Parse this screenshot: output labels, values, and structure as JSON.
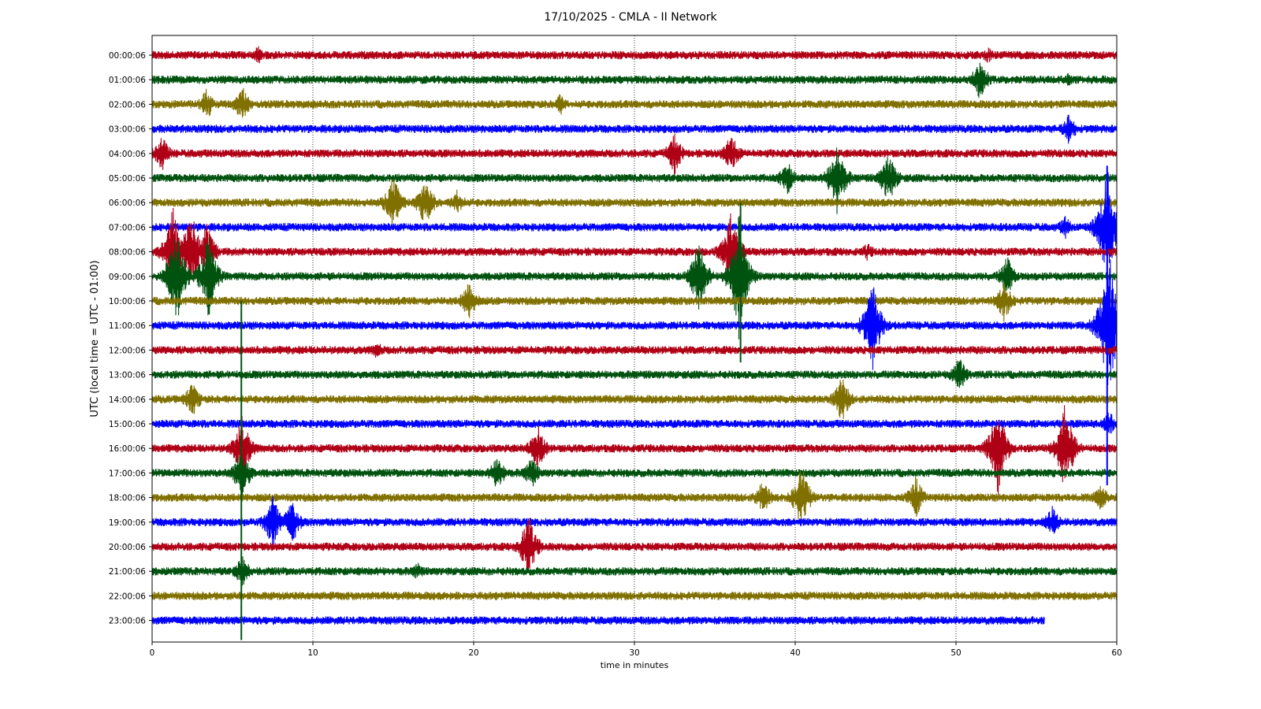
{
  "chart_data": {
    "type": "line",
    "title": "17/10/2025 - CMLA - II Network",
    "xlabel": "time in minutes",
    "ylabel": "UTC (local time = UTC - 01:00)",
    "xlim": [
      0,
      60
    ],
    "x_ticks": [
      "0",
      "10",
      "20",
      "30",
      "40",
      "50",
      "60"
    ],
    "grid": "vertical dotted lines at each x tick",
    "colors": [
      "#b00016",
      "#00520f",
      "#807000",
      "#0000ff"
    ],
    "series": [
      {
        "name": "00:00:06",
        "color": "#b00016",
        "end_minute": 60,
        "events": [
          {
            "t": 6.6,
            "amp": 0.4
          },
          {
            "t": 52.0,
            "amp": 0.35
          }
        ]
      },
      {
        "name": "01:00:06",
        "color": "#00520f",
        "end_minute": 60,
        "events": [
          {
            "t": 51.5,
            "amp": 0.9
          },
          {
            "t": 57.0,
            "amp": 0.3
          }
        ]
      },
      {
        "name": "02:00:06",
        "color": "#807000",
        "end_minute": 60,
        "events": [
          {
            "t": 3.4,
            "amp": 0.7
          },
          {
            "t": 5.6,
            "amp": 0.8
          },
          {
            "t": 25.4,
            "amp": 0.5
          }
        ]
      },
      {
        "name": "03:00:06",
        "color": "#0000ff",
        "end_minute": 60,
        "events": [
          {
            "t": 57.0,
            "amp": 0.7
          }
        ]
      },
      {
        "name": "04:00:06",
        "color": "#b00016",
        "end_minute": 60,
        "events": [
          {
            "t": 0.6,
            "amp": 0.8
          },
          {
            "t": 32.5,
            "amp": 0.9
          },
          {
            "t": 36.0,
            "amp": 0.9
          }
        ]
      },
      {
        "name": "05:00:06",
        "color": "#00520f",
        "end_minute": 60,
        "events": [
          {
            "t": 39.5,
            "amp": 0.8
          },
          {
            "t": 42.6,
            "amp": 1.6
          },
          {
            "t": 45.8,
            "amp": 1.2
          }
        ]
      },
      {
        "name": "06:00:06",
        "color": "#807000",
        "end_minute": 60,
        "events": [
          {
            "t": 15.0,
            "amp": 1.2
          },
          {
            "t": 17.0,
            "amp": 1.1
          },
          {
            "t": 19.0,
            "amp": 0.6
          }
        ]
      },
      {
        "name": "07:00:06",
        "color": "#0000ff",
        "end_minute": 60,
        "events": [
          {
            "t": 56.8,
            "amp": 0.5
          },
          {
            "t": 59.4,
            "amp": 2.6
          }
        ]
      },
      {
        "name": "08:00:06",
        "color": "#b00016",
        "end_minute": 60,
        "events": [
          {
            "t": 1.3,
            "amp": 2.0
          },
          {
            "t": 2.4,
            "amp": 2.0
          },
          {
            "t": 3.4,
            "amp": 1.3
          },
          {
            "t": 36.0,
            "amp": 1.8
          },
          {
            "t": 44.5,
            "amp": 0.4
          }
        ]
      },
      {
        "name": "09:00:06",
        "color": "#00520f",
        "end_minute": 60,
        "events": [
          {
            "t": 1.5,
            "amp": 2.2
          },
          {
            "t": 3.5,
            "amp": 1.8
          },
          {
            "t": 34.0,
            "amp": 1.6
          },
          {
            "t": 36.5,
            "amp": 2.6
          },
          {
            "t": 53.2,
            "amp": 0.9
          }
        ]
      },
      {
        "name": "10:00:06",
        "color": "#807000",
        "end_minute": 60,
        "events": [
          {
            "t": 19.7,
            "amp": 0.9
          },
          {
            "t": 53.0,
            "amp": 0.9
          }
        ]
      },
      {
        "name": "11:00:06",
        "color": "#0000ff",
        "end_minute": 60,
        "events": [
          {
            "t": 44.8,
            "amp": 2.0
          },
          {
            "t": 59.5,
            "amp": 3.5
          }
        ]
      },
      {
        "name": "12:00:06",
        "color": "#b00016",
        "end_minute": 60,
        "events": [
          {
            "t": 14.0,
            "amp": 0.4
          }
        ]
      },
      {
        "name": "13:00:06",
        "color": "#00520f",
        "end_minute": 60,
        "events": [
          {
            "t": 50.2,
            "amp": 0.8
          }
        ]
      },
      {
        "name": "14:00:06",
        "color": "#807000",
        "end_minute": 60,
        "events": [
          {
            "t": 2.5,
            "amp": 0.8
          },
          {
            "t": 42.9,
            "amp": 1.0
          }
        ]
      },
      {
        "name": "15:00:06",
        "color": "#0000ff",
        "end_minute": 60,
        "events": [
          {
            "t": 59.5,
            "amp": 0.6
          }
        ]
      },
      {
        "name": "16:00:06",
        "color": "#b00016",
        "end_minute": 60,
        "events": [
          {
            "t": 5.6,
            "amp": 1.5
          },
          {
            "t": 24.0,
            "amp": 1.0
          },
          {
            "t": 52.6,
            "amp": 2.0
          },
          {
            "t": 56.8,
            "amp": 2.0
          }
        ]
      },
      {
        "name": "17:00:06",
        "color": "#00520f",
        "end_minute": 60,
        "events": [
          {
            "t": 5.6,
            "amp": 1.2
          },
          {
            "t": 21.5,
            "amp": 0.8
          },
          {
            "t": 23.6,
            "amp": 0.7
          }
        ]
      },
      {
        "name": "18:00:06",
        "color": "#807000",
        "end_minute": 60,
        "events": [
          {
            "t": 38.0,
            "amp": 0.8
          },
          {
            "t": 40.4,
            "amp": 1.4
          },
          {
            "t": 47.5,
            "amp": 0.9
          },
          {
            "t": 59.0,
            "amp": 0.6
          }
        ]
      },
      {
        "name": "19:00:06",
        "color": "#0000ff",
        "end_minute": 60,
        "events": [
          {
            "t": 7.5,
            "amp": 1.2
          },
          {
            "t": 8.7,
            "amp": 1.0
          },
          {
            "t": 56.0,
            "amp": 0.7
          }
        ]
      },
      {
        "name": "20:00:06",
        "color": "#b00016",
        "end_minute": 60,
        "events": [
          {
            "t": 23.4,
            "amp": 1.4
          }
        ]
      },
      {
        "name": "21:00:06",
        "color": "#00520f",
        "end_minute": 60,
        "events": [
          {
            "t": 5.6,
            "amp": 0.7
          },
          {
            "t": 16.5,
            "amp": 0.4
          }
        ]
      },
      {
        "name": "22:00:06",
        "color": "#807000",
        "end_minute": 60,
        "events": []
      },
      {
        "name": "23:00:06",
        "color": "#0000ff",
        "end_minute": 55.5,
        "events": []
      }
    ],
    "spikes": [
      {
        "t": 5.55,
        "from_row": 10,
        "to_row": 23.8,
        "color": "#00520f"
      },
      {
        "t": 36.6,
        "from_row": 6,
        "to_row": 12.5,
        "color": "#00520f"
      },
      {
        "t": 59.4,
        "from_row": 4.5,
        "to_row": 17.5,
        "color": "#0000ff"
      }
    ]
  }
}
